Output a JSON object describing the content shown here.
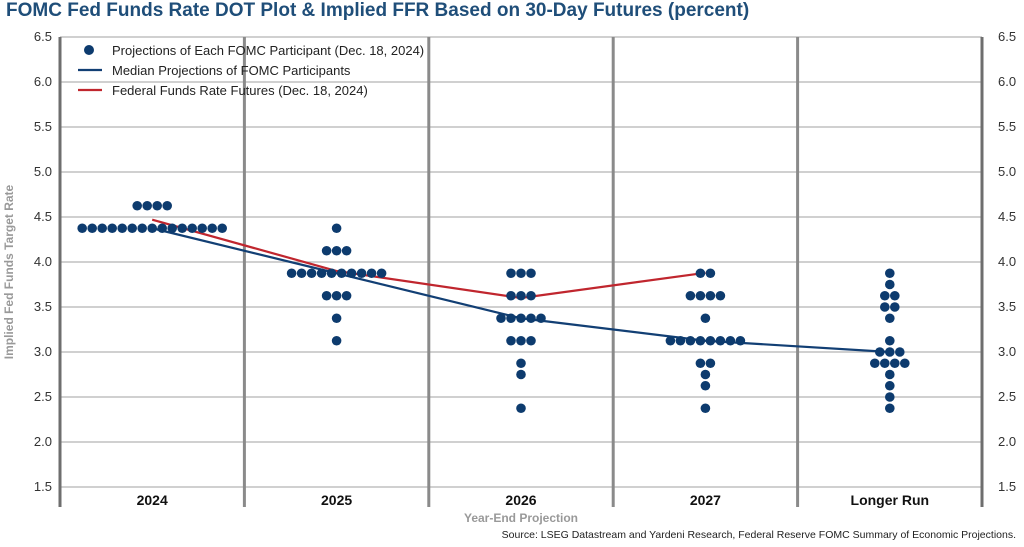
{
  "title": "FOMC Fed Funds Rate DOT Plot & Implied FFR Based on 30-Day Futures (percent)",
  "source": "Source: LSEG Datastream and Yardeni Research, Federal Reserve FOMC Summary of Economic Projections.",
  "chart_data": {
    "type": "scatter",
    "title": "FOMC Fed Funds Rate DOT Plot & Implied FFR Based on 30-Day Futures (percent)",
    "xlabel": "Year-End Projection",
    "ylabel": "Implied Fed Funds Target Rate",
    "ylim": [
      1.5,
      6.5
    ],
    "yticks": [
      "1.5",
      "2.0",
      "2.5",
      "3.0",
      "3.5",
      "4.0",
      "4.5",
      "5.0",
      "5.5",
      "6.0",
      "6.5"
    ],
    "categories": [
      "2024",
      "2025",
      "2026",
      "2027",
      "Longer Run"
    ],
    "grid": true,
    "legend_position": "top-left",
    "dots": [
      {
        "category": "2024",
        "points": [
          {
            "y": 4.625,
            "n": 4
          },
          {
            "y": 4.375,
            "n": 15
          }
        ]
      },
      {
        "category": "2025",
        "points": [
          {
            "y": 4.375,
            "n": 1
          },
          {
            "y": 4.125,
            "n": 3
          },
          {
            "y": 3.875,
            "n": 10
          },
          {
            "y": 3.625,
            "n": 3
          },
          {
            "y": 3.375,
            "n": 1
          },
          {
            "y": 3.125,
            "n": 1
          }
        ]
      },
      {
        "category": "2026",
        "points": [
          {
            "y": 3.875,
            "n": 3
          },
          {
            "y": 3.625,
            "n": 3
          },
          {
            "y": 3.375,
            "n": 5
          },
          {
            "y": 3.125,
            "n": 3
          },
          {
            "y": 2.875,
            "n": 1
          },
          {
            "y": 2.75,
            "n": 1
          },
          {
            "y": 2.375,
            "n": 1
          }
        ]
      },
      {
        "category": "2027",
        "points": [
          {
            "y": 3.875,
            "n": 2
          },
          {
            "y": 3.625,
            "n": 4
          },
          {
            "y": 3.375,
            "n": 1
          },
          {
            "y": 3.125,
            "n": 8
          },
          {
            "y": 2.875,
            "n": 2
          },
          {
            "y": 2.75,
            "n": 1
          },
          {
            "y": 2.625,
            "n": 1
          },
          {
            "y": 2.375,
            "n": 1
          }
        ]
      },
      {
        "category": "Longer Run",
        "points": [
          {
            "y": 3.875,
            "n": 1
          },
          {
            "y": 3.75,
            "n": 1
          },
          {
            "y": 3.625,
            "n": 2
          },
          {
            "y": 3.5,
            "n": 2
          },
          {
            "y": 3.375,
            "n": 1
          },
          {
            "y": 3.125,
            "n": 1
          },
          {
            "y": 3.0,
            "n": 3
          },
          {
            "y": 2.875,
            "n": 4
          },
          {
            "y": 2.75,
            "n": 1
          },
          {
            "y": 2.625,
            "n": 1
          },
          {
            "y": 2.5,
            "n": 1
          },
          {
            "y": 2.375,
            "n": 1
          }
        ]
      }
    ],
    "series": [
      {
        "name": "Projections of Each FOMC Participant (Dec. 18, 2024)",
        "kind": "dots",
        "color": "#0d3b6e"
      },
      {
        "name": "Median Projections of FOMC Participants",
        "kind": "line",
        "color": "#123f74",
        "x": [
          "2024",
          "2025",
          "2026",
          "2027",
          "Longer Run"
        ],
        "values": [
          4.375,
          3.875,
          3.375,
          3.125,
          3.0
        ]
      },
      {
        "name": "Federal Funds Rate Futures (Dec. 18, 2024)",
        "kind": "line",
        "color": "#c0262e",
        "x": [
          "2024",
          "2025",
          "2026",
          "2027"
        ],
        "values": [
          4.47,
          3.9,
          3.6,
          3.88
        ]
      }
    ]
  }
}
